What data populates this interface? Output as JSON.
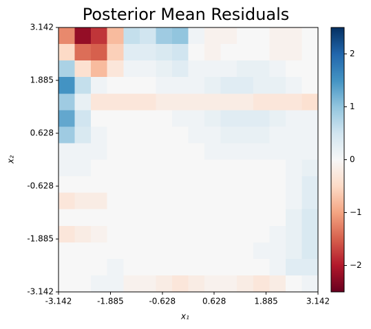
{
  "chart_data": {
    "type": "heatmap",
    "title": "Posterior Mean Residuals",
    "xlabel": "x₁",
    "ylabel": "x₂",
    "colormap": "RdBu",
    "xlim": [
      -3.142,
      3.142
    ],
    "ylim": [
      -3.142,
      3.142
    ],
    "xticks": [
      -3.142,
      -1.885,
      -0.628,
      0.628,
      1.885,
      3.142
    ],
    "yticks": [
      -3.142,
      -1.885,
      -0.628,
      0.628,
      1.885,
      3.142
    ],
    "clim": [
      -2.5,
      2.5
    ],
    "cticks": [
      {
        "value": -2,
        "label": "−2"
      },
      {
        "value": -1,
        "label": "−1"
      },
      0,
      1,
      2
    ],
    "z": [
      [
        -1.2,
        -2.2,
        -1.8,
        -0.8,
        0.6,
        0.5,
        0.9,
        1.0,
        0.1,
        -0.1,
        -0.1,
        0.0,
        0.0,
        -0.1,
        -0.1,
        0.0
      ],
      [
        -0.5,
        -1.4,
        -1.5,
        -0.6,
        0.3,
        0.3,
        0.4,
        0.5,
        0.0,
        -0.1,
        0.0,
        0.0,
        0.0,
        -0.1,
        -0.1,
        0.0
      ],
      [
        0.8,
        -0.4,
        -0.8,
        -0.3,
        0.1,
        0.1,
        0.2,
        0.3,
        0.1,
        0.1,
        0.1,
        0.2,
        0.2,
        0.1,
        0.0,
        0.0
      ],
      [
        1.5,
        0.6,
        0.1,
        0.0,
        0.0,
        0.0,
        0.1,
        0.1,
        0.1,
        0.2,
        0.3,
        0.3,
        0.2,
        0.2,
        0.1,
        0.0
      ],
      [
        0.9,
        0.2,
        -0.3,
        -0.3,
        -0.3,
        -0.3,
        -0.2,
        -0.2,
        -0.2,
        -0.2,
        -0.2,
        -0.2,
        -0.3,
        -0.3,
        -0.3,
        -0.4
      ],
      [
        1.3,
        0.5,
        0.0,
        0.0,
        0.0,
        0.0,
        0.0,
        0.1,
        0.1,
        0.2,
        0.3,
        0.3,
        0.3,
        0.2,
        0.1,
        0.1
      ],
      [
        0.9,
        0.4,
        0.1,
        0.0,
        0.0,
        0.0,
        0.0,
        0.0,
        0.1,
        0.1,
        0.2,
        0.2,
        0.2,
        0.1,
        0.1,
        0.1
      ],
      [
        0.1,
        0.1,
        0.1,
        0.0,
        0.0,
        0.0,
        0.0,
        0.0,
        0.0,
        0.1,
        0.1,
        0.1,
        0.1,
        0.1,
        0.1,
        0.1
      ],
      [
        0.1,
        0.1,
        0.0,
        0.0,
        0.0,
        0.0,
        0.0,
        0.0,
        0.0,
        0.0,
        0.0,
        0.0,
        0.0,
        0.0,
        0.1,
        0.2
      ],
      [
        0.0,
        0.0,
        0.0,
        0.0,
        0.0,
        0.0,
        0.0,
        0.0,
        0.0,
        0.0,
        0.0,
        0.0,
        0.0,
        0.0,
        0.1,
        0.3
      ],
      [
        -0.3,
        -0.2,
        -0.2,
        0.0,
        0.0,
        0.0,
        0.0,
        0.0,
        0.0,
        0.0,
        0.0,
        0.0,
        0.0,
        0.0,
        0.1,
        0.3
      ],
      [
        0.0,
        0.0,
        0.0,
        0.0,
        0.0,
        0.0,
        0.0,
        0.0,
        0.0,
        0.0,
        0.0,
        0.0,
        0.0,
        0.0,
        0.2,
        0.4
      ],
      [
        -0.3,
        -0.2,
        -0.1,
        0.0,
        0.0,
        0.0,
        0.0,
        0.0,
        0.0,
        0.0,
        0.0,
        0.0,
        0.0,
        0.1,
        0.2,
        0.4
      ],
      [
        0.0,
        0.0,
        0.0,
        0.0,
        0.0,
        0.0,
        0.0,
        0.0,
        0.0,
        0.0,
        0.0,
        0.0,
        0.1,
        0.1,
        0.2,
        0.4
      ],
      [
        0.0,
        0.0,
        0.0,
        0.1,
        0.0,
        0.0,
        0.0,
        0.0,
        0.0,
        0.0,
        0.0,
        0.0,
        0.0,
        0.1,
        0.3,
        0.3
      ],
      [
        0.0,
        0.0,
        0.1,
        0.1,
        -0.1,
        -0.1,
        -0.2,
        -0.3,
        -0.2,
        -0.1,
        -0.1,
        -0.2,
        -0.3,
        -0.2,
        0.0,
        0.1
      ]
    ]
  }
}
